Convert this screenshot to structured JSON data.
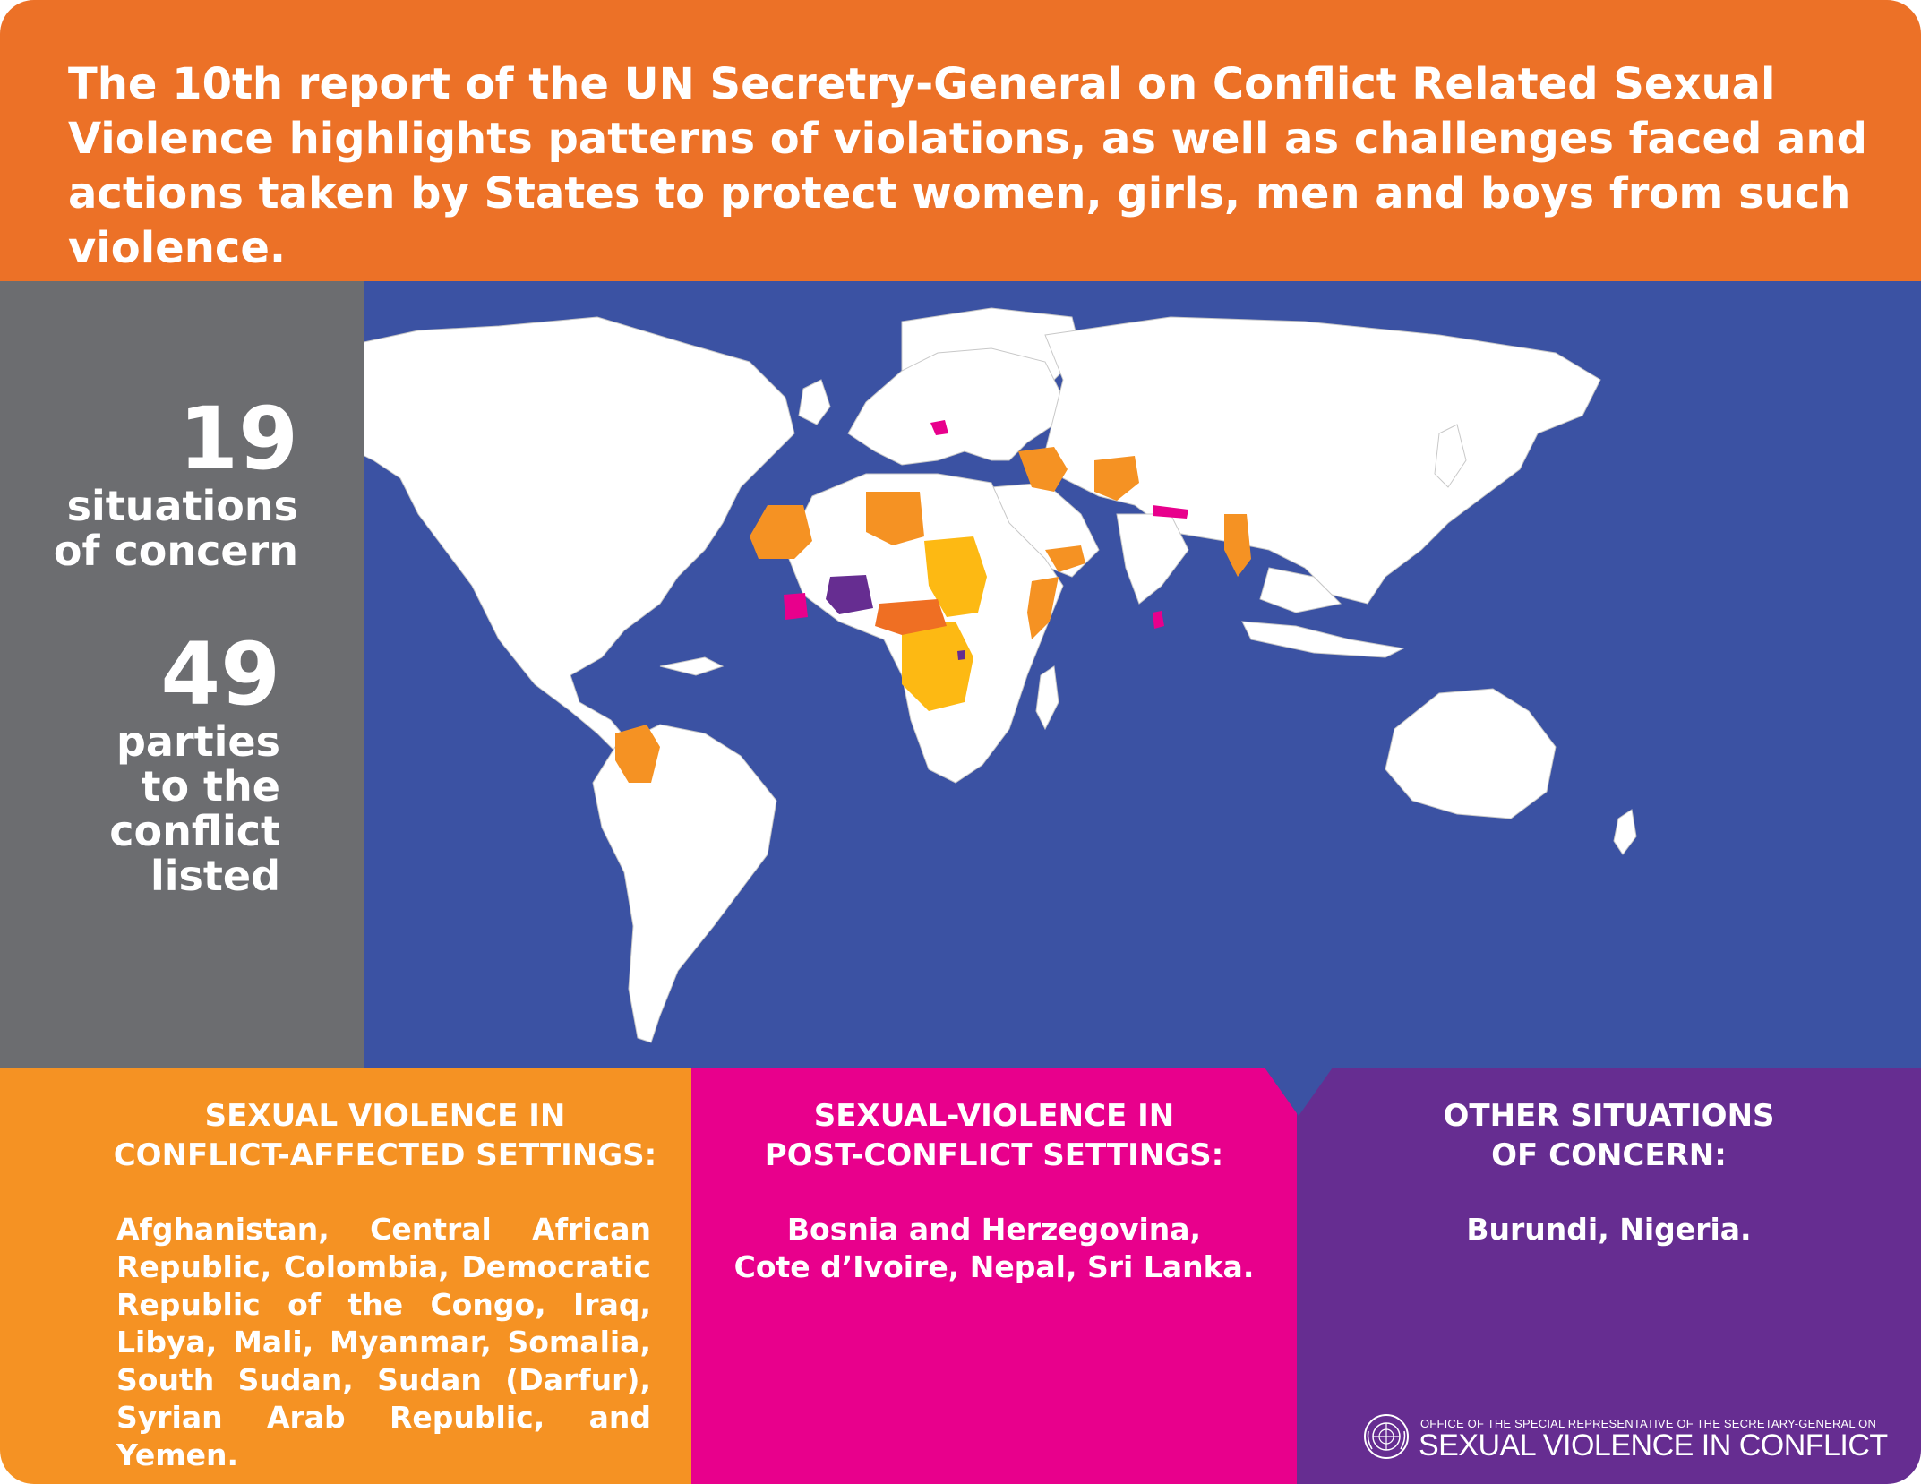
{
  "header": {
    "text": "The 10th report of the UN Secretry-General on Conflict Related Sexual Violence highlights patterns of violations, as well as challenges faced and actions taken by States to protect women, girls, men and boys from such violence."
  },
  "stats": [
    {
      "number": "19",
      "label_lines": [
        "situations",
        "of concern"
      ]
    },
    {
      "number": "49",
      "label_lines": [
        "parties",
        "to the",
        "conflict",
        "listed"
      ]
    }
  ],
  "panels": {
    "conflict": {
      "title_lines": [
        "SEXUAL VIOLENCE IN",
        "CONFLICT-AFFECTED SETTINGS:"
      ],
      "body": "Afghanistan, Central African Republic, Colombia, Democratic Republic of the Congo, Iraq, Libya, Mali, Myanmar, Somalia, South Sudan, Sudan (Darfur), Syrian Arab Republic, and Yemen."
    },
    "post_conflict": {
      "title_lines": [
        "SEXUAL-VIOLENCE IN",
        "POST-CONFLICT SETTINGS:"
      ],
      "body_lines": [
        "Bosnia and Herzegovina,",
        "Cote d’Ivoire, Nepal, Sri Lanka."
      ]
    },
    "other": {
      "title_lines": [
        "OTHER SITUATIONS",
        "OF CONCERN:"
      ],
      "body": "Burundi, Nigeria."
    }
  },
  "logo": {
    "small": "OFFICE OF THE SPECIAL REPRESENTATIVE OF THE SECRETARY-GENERAL ON",
    "big": "SEXUAL VIOLENCE IN CONFLICT",
    "emblem": "un-emblem"
  },
  "colors": {
    "header": "#ec7127",
    "stats": "#6c6d70",
    "ocean": "#3b52a3",
    "land": "#ffffff",
    "conflict_affected": "#f59223",
    "conflict_highlight": "#fdb913",
    "post_conflict": "#e8008c",
    "other_concern": "#662d91"
  }
}
